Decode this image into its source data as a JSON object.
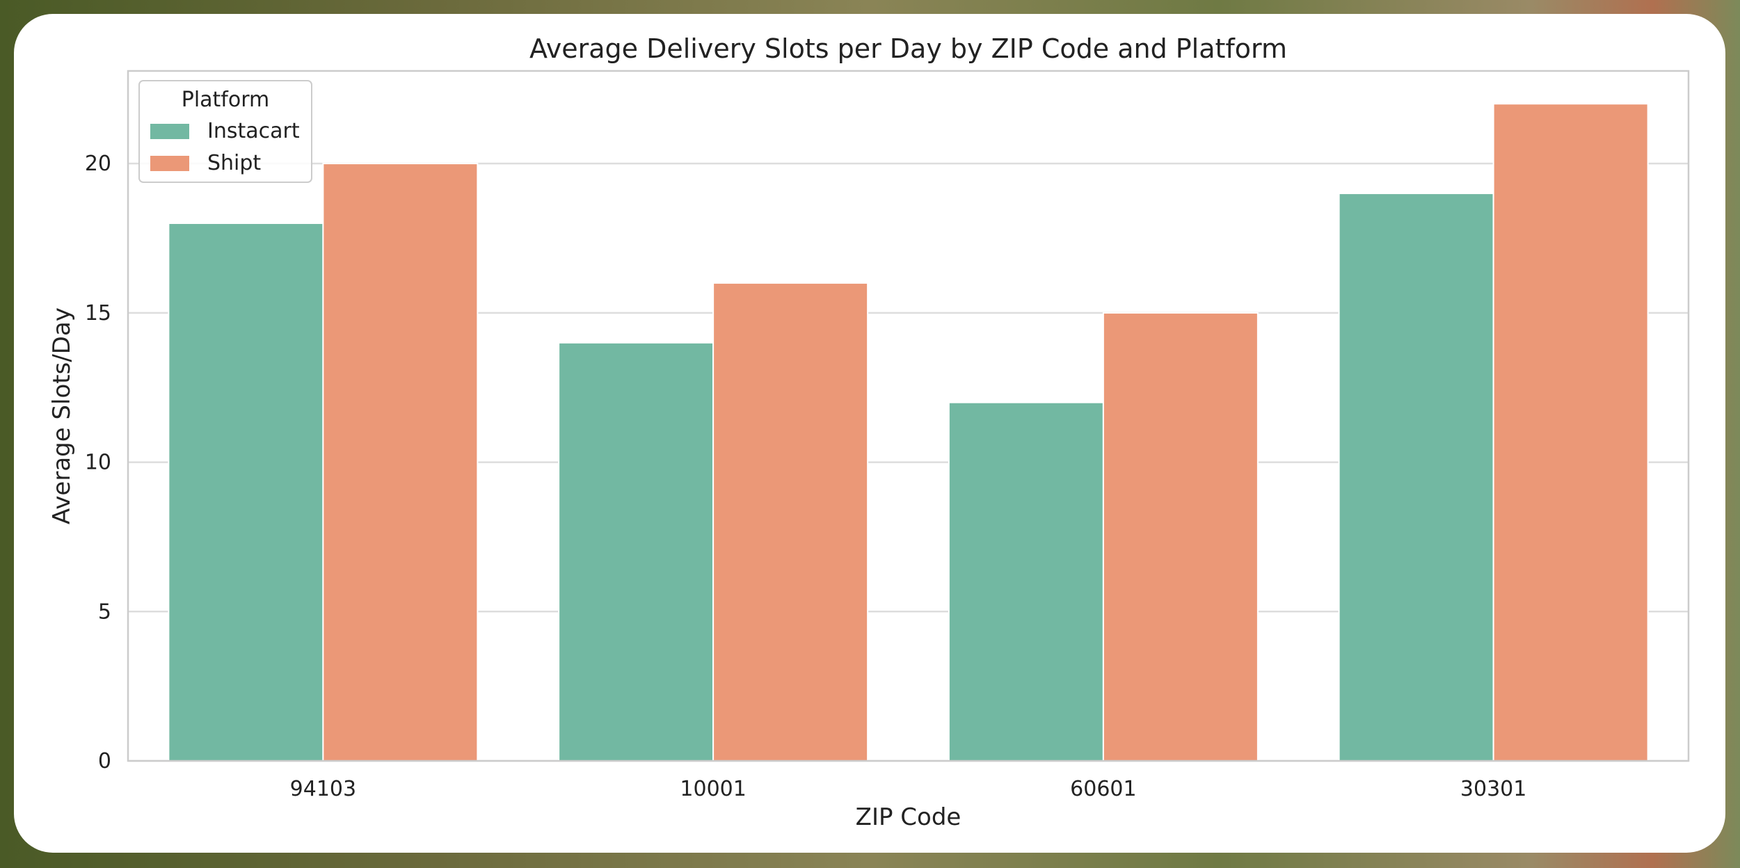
{
  "chart_data": {
    "type": "bar",
    "title": "Average Delivery Slots per Day by ZIP Code and Platform",
    "xlabel": "ZIP Code",
    "ylabel": "Average Slots/Day",
    "categories": [
      "94103",
      "10001",
      "60601",
      "30301"
    ],
    "series": [
      {
        "name": "Instacart",
        "values": [
          18,
          14,
          12,
          19
        ],
        "color": "#72b8a2"
      },
      {
        "name": "Shipt",
        "values": [
          20,
          16,
          15,
          22
        ],
        "color": "#eb9877"
      }
    ],
    "ylim": [
      0,
      23.1
    ],
    "yticks": [
      0,
      5,
      10,
      15,
      20
    ],
    "grid": true,
    "legend": {
      "title": "Platform",
      "placement": "top-left"
    }
  }
}
